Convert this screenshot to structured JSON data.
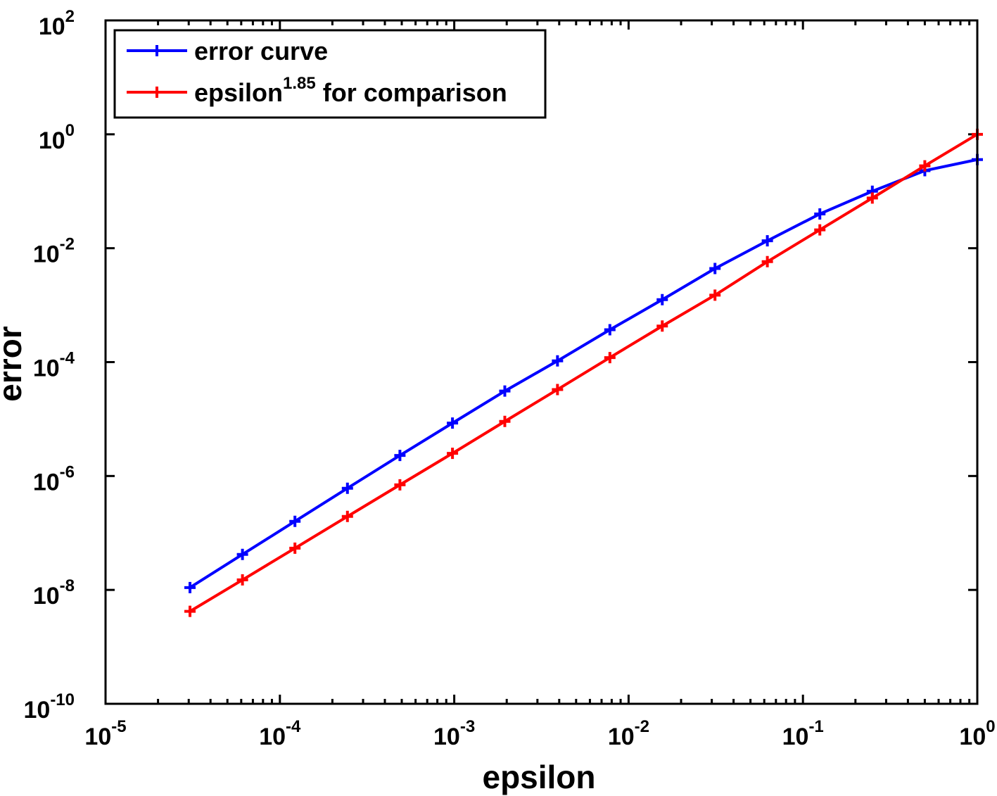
{
  "chart_data": {
    "type": "line",
    "xlabel": "epsilon",
    "ylabel": "error",
    "x_scale": "log",
    "y_scale": "log",
    "xlim": [
      1e-05,
      1
    ],
    "ylim": [
      1e-10,
      100
    ],
    "grid": false,
    "legend_position": "top-left",
    "x_ticks": [
      {
        "base": "10",
        "exp": "-5",
        "value": 1e-05
      },
      {
        "base": "10",
        "exp": "-4",
        "value": 0.0001
      },
      {
        "base": "10",
        "exp": "-3",
        "value": 0.001
      },
      {
        "base": "10",
        "exp": "-2",
        "value": 0.01
      },
      {
        "base": "10",
        "exp": "-1",
        "value": 0.1
      },
      {
        "base": "10",
        "exp": "0",
        "value": 1
      }
    ],
    "y_ticks": [
      {
        "base": "10",
        "exp": "-10",
        "value": 1e-10
      },
      {
        "base": "10",
        "exp": "-8",
        "value": 1e-08
      },
      {
        "base": "10",
        "exp": "-6",
        "value": 1e-06
      },
      {
        "base": "10",
        "exp": "-4",
        "value": 0.0001
      },
      {
        "base": "10",
        "exp": "-2",
        "value": 0.01
      },
      {
        "base": "10",
        "exp": "0",
        "value": 1
      },
      {
        "base": "10",
        "exp": "2",
        "value": 100
      }
    ],
    "x": [
      3.05e-05,
      6.1e-05,
      0.000122,
      0.000244,
      0.000488,
      0.000977,
      0.00195,
      0.00391,
      0.00781,
      0.0156,
      0.0313,
      0.0625,
      0.125,
      0.25,
      0.5,
      1
    ],
    "series": [
      {
        "name": "error curve",
        "name_sup": "",
        "name_suffix": "",
        "color": "#0000ff",
        "values": [
          1.1e-08,
          4.2e-08,
          1.6e-07,
          6.1e-07,
          2.3e-06,
          8.5e-06,
          3.1e-05,
          0.000105,
          0.00037,
          0.00125,
          0.0044,
          0.0135,
          0.04,
          0.1,
          0.23,
          0.36
        ]
      },
      {
        "name": "epsilon",
        "name_sup": "1.85",
        "name_suffix": " for comparison",
        "color": "#ff0000",
        "values": [
          4.2e-09,
          1.5e-08,
          5.4e-08,
          1.95e-07,
          7e-07,
          2.5e-06,
          9.1e-06,
          3.3e-05,
          0.00012,
          0.00043,
          0.0015,
          0.0058,
          0.021,
          0.076,
          0.28,
          1.0
        ]
      }
    ]
  }
}
